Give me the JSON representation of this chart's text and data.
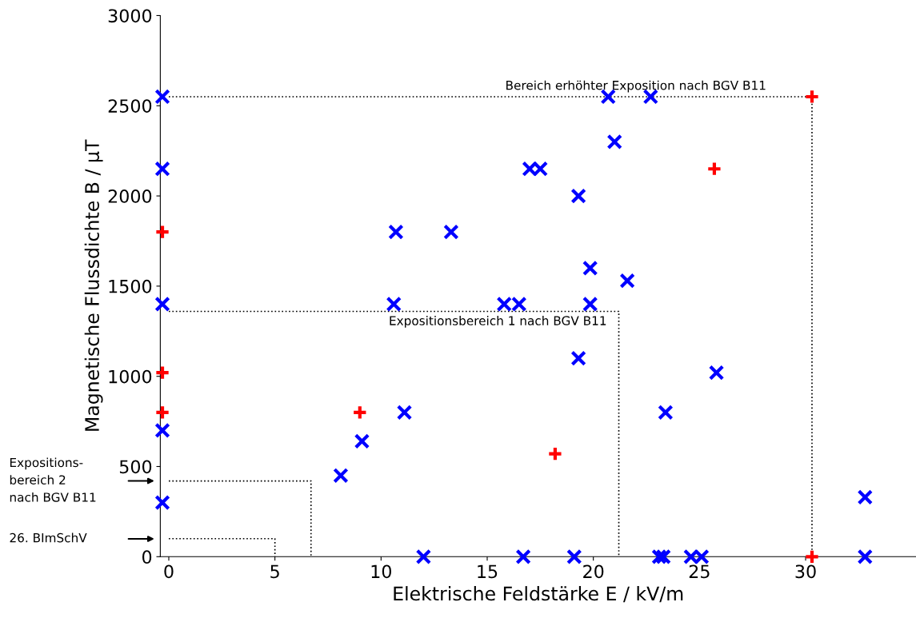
{
  "chart_data": {
    "type": "scatter",
    "xlabel": "Elektrische Feldstärke E / kV/m",
    "ylabel": "Magnetische Flussdichte B / µT",
    "xlim": [
      -0.4,
      35.2
    ],
    "ylim": [
      0,
      3000
    ],
    "xticks": [
      0,
      5,
      10,
      15,
      20,
      25,
      30
    ],
    "yticks": [
      0,
      500,
      1000,
      1500,
      2000,
      2500,
      3000
    ],
    "grid": false,
    "legend": false,
    "series": [
      {
        "color": "#0000ff",
        "marker": "cross",
        "x": [
          -0.3,
          -0.3,
          -0.3,
          -0.3,
          -0.3,
          8.1,
          9.1,
          10.7,
          10.6,
          11.1,
          12,
          13.3,
          15.8,
          16.5,
          16.7,
          17,
          17.5,
          19.1,
          19.3,
          19.3,
          19.85,
          19.85,
          20.7,
          21,
          21.6,
          22.7,
          23.1,
          23.3,
          23.4,
          24.6,
          25.1,
          25.8,
          32.8,
          32.8
        ],
        "values": [
          2550,
          2150,
          1400,
          700,
          300,
          450,
          640,
          1800,
          1400,
          800,
          0,
          1800,
          1400,
          1400,
          0,
          2150,
          2150,
          0,
          2000,
          1100,
          1600,
          1400,
          2550,
          2300,
          1530,
          2550,
          0,
          0,
          800,
          0,
          0,
          1020,
          330,
          0
        ]
      },
      {
        "color": "#ff0000",
        "marker": "plus",
        "x": [
          -0.3,
          -0.3,
          -0.3,
          9.0,
          18.2,
          25.7,
          30.3,
          30.3
        ],
        "values": [
          1800,
          1020,
          800,
          800,
          570,
          2150,
          2550,
          0
        ]
      },
      {
        "type": "line",
        "color": "#000000",
        "line_style": "dotted",
        "marker": "none",
        "x": [
          0,
          30.3,
          30.3
        ],
        "values": [
          2550,
          2550,
          0
        ]
      },
      {
        "type": "line",
        "color": "#000000",
        "line_style": "dotted",
        "marker": "none",
        "x": [
          0,
          21.2,
          21.2
        ],
        "values": [
          1360,
          1360,
          0
        ]
      },
      {
        "type": "line",
        "color": "#000000",
        "line_style": "dotted",
        "marker": "none",
        "x": [
          0,
          6.7,
          6.7
        ],
        "values": [
          420,
          420,
          0
        ]
      },
      {
        "type": "line",
        "color": "#000000",
        "line_style": "dotted",
        "marker": "none",
        "x": [
          0,
          5,
          5
        ],
        "values": [
          100,
          100,
          0
        ]
      }
    ],
    "annotations": [
      {
        "text": "Bereich erhöhter Exposition nach BGV B11",
        "x": 22,
        "y": 2550
      },
      {
        "text": "Expositionsbereich 1 nach BGV B11",
        "x": 15.5,
        "y": 1360
      },
      "Expositions-\nbereich 2\nnach BGV B11",
      "26. BImSchV"
    ]
  }
}
